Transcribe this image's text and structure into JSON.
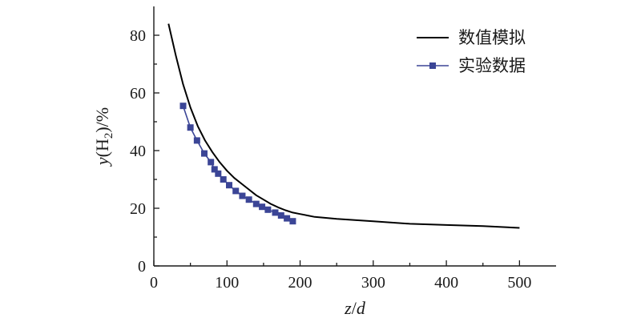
{
  "chart_data": {
    "type": "line",
    "xlabel": {
      "var": "z",
      "slash": "/",
      "denom": "d"
    },
    "ylabel": {
      "prefix": "y",
      "open": "(H",
      "sub": "2",
      "close": ")/%"
    },
    "xlim": [
      0,
      550
    ],
    "ylim": [
      0,
      90
    ],
    "xticks": [
      0,
      100,
      200,
      300,
      400,
      500
    ],
    "yticks": [
      0,
      20,
      40,
      60,
      80
    ],
    "legend_position": "top-right",
    "grid": false,
    "series": [
      {
        "name": "数值模拟",
        "color": "#000000",
        "marker": "none",
        "x": [
          20,
          30,
          40,
          50,
          60,
          70,
          80,
          90,
          100,
          110,
          120,
          130,
          140,
          150,
          160,
          170,
          180,
          190,
          200,
          210,
          220,
          250,
          300,
          350,
          400,
          450,
          500
        ],
        "y": [
          84,
          73,
          63,
          55,
          48.5,
          43.5,
          39.5,
          36,
          33,
          30.5,
          28.5,
          26.5,
          24.5,
          23,
          21.5,
          20.3,
          19.3,
          18.5,
          18,
          17.5,
          17,
          16.3,
          15.5,
          14.6,
          14.2,
          13.8,
          13.2
        ]
      },
      {
        "name": "实验数据",
        "color": "#3b4596",
        "marker": "square",
        "x": [
          40,
          50,
          59,
          69,
          78,
          83,
          88,
          95,
          103,
          112,
          121,
          130,
          140,
          148,
          156,
          166,
          174,
          182,
          190
        ],
        "y": [
          55.5,
          48,
          43.5,
          39,
          36,
          33.5,
          32,
          30,
          28,
          26,
          24.3,
          23,
          21.5,
          20.5,
          19.5,
          18.5,
          17.5,
          16.5,
          15.5
        ]
      }
    ]
  }
}
